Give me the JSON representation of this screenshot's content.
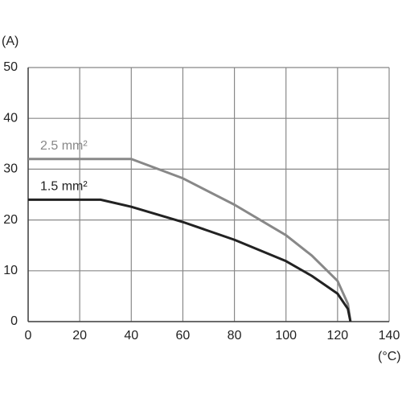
{
  "chart_data": {
    "type": "line",
    "y_label": "(A)",
    "x_label": "(°C)",
    "xlim": [
      0,
      140
    ],
    "xticks": [
      0,
      20,
      40,
      60,
      80,
      100,
      120,
      140
    ],
    "ylim": [
      0,
      50
    ],
    "yticks": [
      0,
      10,
      20,
      30,
      40,
      50
    ],
    "grid": true,
    "series": [
      {
        "name": "2.5 mm²",
        "color": "#888888",
        "x": [
          0,
          40,
          60,
          80,
          100,
          110,
          120,
          124,
          125
        ],
        "values": [
          32,
          32,
          28.2,
          23,
          17,
          13,
          8,
          3.5,
          0
        ]
      },
      {
        "name": "1.5 mm²",
        "color": "#222222",
        "x": [
          0,
          28,
          40,
          60,
          80,
          100,
          110,
          120,
          124,
          125
        ],
        "values": [
          24,
          24,
          22.6,
          19.6,
          16.1,
          11.9,
          9,
          5.5,
          2.5,
          0
        ]
      }
    ]
  }
}
